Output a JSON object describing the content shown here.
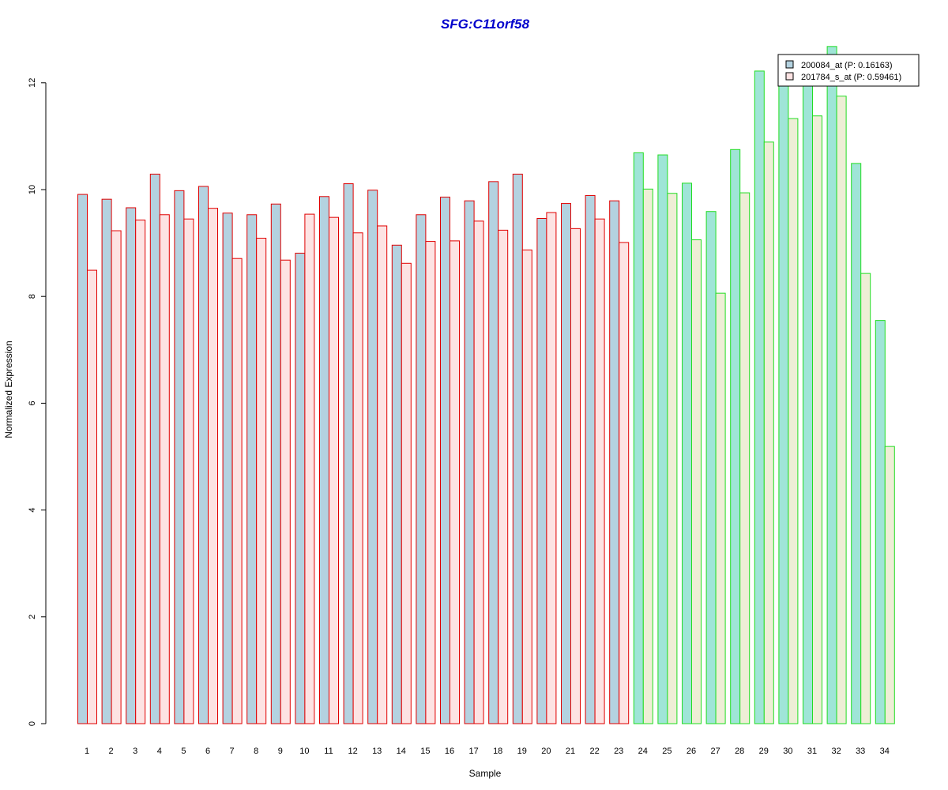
{
  "chart_data": {
    "type": "bar",
    "title": "SFG:C11orf58",
    "xlabel": "Sample",
    "ylabel": "Normalized Expression",
    "ylim": [
      0,
      12.8
    ],
    "yticks": [
      0,
      2,
      4,
      6,
      8,
      10,
      12
    ],
    "categories": [
      "1",
      "2",
      "3",
      "4",
      "5",
      "6",
      "7",
      "8",
      "9",
      "10",
      "11",
      "12",
      "13",
      "14",
      "15",
      "16",
      "17",
      "18",
      "19",
      "20",
      "21",
      "22",
      "23",
      "24",
      "25",
      "26",
      "27",
      "28",
      "29",
      "30",
      "31",
      "32",
      "33",
      "34"
    ],
    "series": [
      {
        "name": "200084_at (P: 0.16163)",
        "values": [
          9.91,
          9.82,
          9.66,
          10.29,
          9.98,
          10.06,
          9.56,
          9.53,
          9.73,
          8.81,
          9.87,
          10.11,
          9.99,
          8.96,
          9.53,
          9.86,
          9.79,
          10.15,
          10.29,
          9.46,
          9.74,
          9.89,
          9.79,
          10.69,
          10.65,
          10.12,
          9.59,
          10.75,
          12.22,
          12.1,
          12.15,
          12.68,
          10.49,
          7.55
        ]
      },
      {
        "name": "201784_s_at (P: 0.59461)",
        "values": [
          8.49,
          9.23,
          9.43,
          9.53,
          9.45,
          9.65,
          8.71,
          9.09,
          8.68,
          9.54,
          9.48,
          9.19,
          9.32,
          8.62,
          9.03,
          9.04,
          9.41,
          9.24,
          8.87,
          9.57,
          9.27,
          9.45,
          9.01,
          10.01,
          9.93,
          9.06,
          8.06,
          9.94,
          10.89,
          11.33,
          11.38,
          11.75,
          8.43,
          5.19
        ]
      }
    ],
    "group_split_after": 23,
    "colors": {
      "group1_border": "#e00000",
      "group2_border": "#22dd22",
      "series1_fill_group1": "#b4d2e0",
      "series2_fill_group1": "#fde3e3",
      "series1_fill_group2": "#9fe5d7",
      "series2_fill_group2": "#eeeed6",
      "title": "#0000cc"
    },
    "legend": {
      "placement": "top-right",
      "entries": [
        "200084_at (P: 0.16163)",
        "201784_s_at (P: 0.59461)"
      ],
      "swatches": [
        "#b4d2e0",
        "#fde3e3"
      ]
    },
    "grid": false
  }
}
